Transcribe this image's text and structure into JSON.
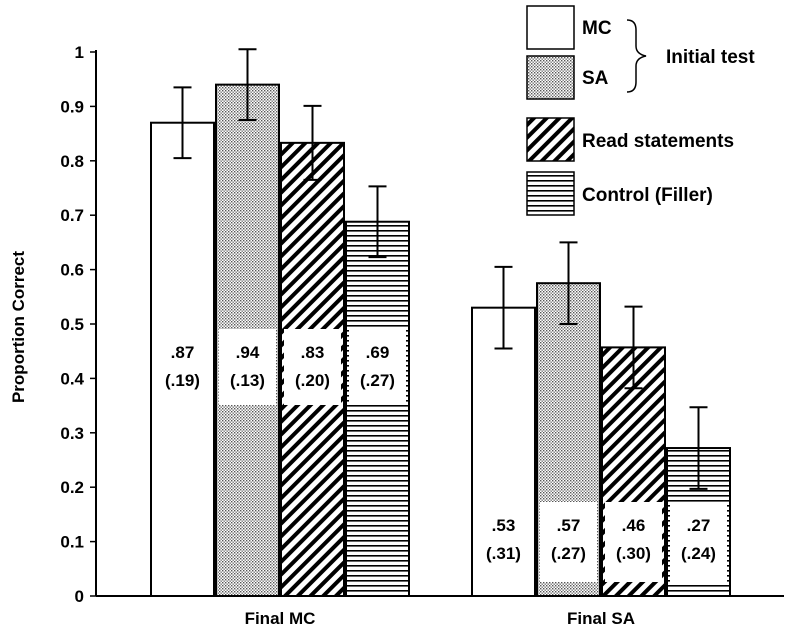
{
  "chart_data": {
    "type": "bar",
    "title": "",
    "xlabel": "",
    "ylabel": "Proportion Correct",
    "ylim": [
      0,
      1
    ],
    "yticks": [
      "0",
      "0.1",
      "0.2",
      "0.3",
      "0.4",
      "0.5",
      "0.6",
      "0.7",
      "0.8",
      "0.9",
      "1"
    ],
    "categories": [
      "Final MC",
      "Final SA"
    ],
    "series": [
      {
        "name": "MC",
        "pattern": "solid-white",
        "values": [
          0.87,
          0.53
        ],
        "error": [
          0.065,
          0.075
        ],
        "labels": [
          ".87",
          ".53"
        ],
        "sd_labels": [
          "(.19)",
          "(.31)"
        ]
      },
      {
        "name": "SA",
        "pattern": "dots",
        "values": [
          0.94,
          0.575
        ],
        "error": [
          0.065,
          0.075
        ],
        "labels": [
          ".94",
          ".57"
        ],
        "sd_labels": [
          "(.13)",
          "(.27)"
        ]
      },
      {
        "name": "Read statements",
        "pattern": "diagonal",
        "values": [
          0.833,
          0.457
        ],
        "error": [
          0.068,
          0.075
        ],
        "labels": [
          ".83",
          ".46"
        ],
        "sd_labels": [
          "(.20)",
          "(.30)"
        ]
      },
      {
        "name": "Control (Filler)",
        "pattern": "horizontal",
        "values": [
          0.688,
          0.272
        ],
        "error": [
          0.065,
          0.075
        ],
        "labels": [
          ".69",
          ".27"
        ],
        "sd_labels": [
          "(.27)",
          "(.24)"
        ]
      }
    ],
    "legend": {
      "placement": "top-right",
      "group_label": "Initial test",
      "group_members": [
        "MC",
        "SA"
      ]
    },
    "grid": false
  }
}
